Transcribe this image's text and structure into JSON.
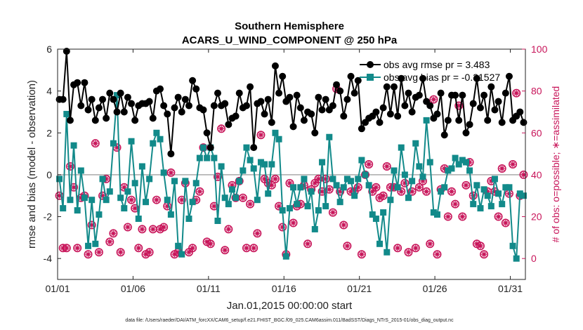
{
  "chart_data": {
    "type": "line",
    "title": "Southern Hemisphere",
    "subtitle": "ACARS_U_WIND_COMPONENT @ 250 hPa",
    "xlabel": "Jan.01,2015 00:00:00 start",
    "ylabel": "rmse and bias (model - observation)",
    "ylabel_right": "# of obs: o=possible; ∗=assimilated",
    "footnote": "data file: /Users/raeder/DAI/ATM_forcXX/CAM6_setup/f.e21.FHIST_BGC.f09_025.CAM6assim.011/BadSST/Diags_NTrS_2015-01/obs_diag_output.nc",
    "x_tick_labels": [
      "01/01",
      "01/06",
      "01/11",
      "01/16",
      "01/21",
      "01/26",
      "01/31"
    ],
    "x_tick_days": [
      1,
      6,
      11,
      16,
      21,
      26,
      31
    ],
    "xlim_days": [
      1,
      32
    ],
    "ylim": [
      -5,
      6
    ],
    "y_ticks": [
      -4,
      -2,
      0,
      2,
      4,
      6
    ],
    "ylim_right": [
      -10,
      100
    ],
    "y_ticks_right": [
      0,
      20,
      40,
      60,
      80,
      100
    ],
    "zero_line": 0,
    "legend_position": "top-right",
    "colors": {
      "rmse": "#000000",
      "bias": "#128a8a",
      "obs": "#c8155a",
      "zero": "#aaaaaa"
    },
    "series": [
      {
        "name": "obs avg rmse pr = 3.483",
        "marker": "circle",
        "y": [
          3.6,
          3.6,
          5.9,
          2.6,
          4.3,
          4.4,
          3.3,
          4.4,
          3.1,
          3.6,
          2.6,
          3.2,
          3.6,
          2.7,
          3.9,
          3.6,
          3.0,
          3.9,
          3.0,
          3.7,
          3.4,
          2.6,
          3.3,
          3.4,
          3.4,
          3.5,
          2.7,
          4.0,
          4.1,
          3.3,
          2.9,
          1.0,
          3.2,
          3.7,
          3.0,
          3.6,
          3.3,
          4.5,
          4.1,
          3.2,
          3.1,
          2.0,
          1.3,
          3.3,
          3.9,
          3.3,
          3.4,
          2.4,
          2.7,
          2.8,
          3.9,
          3.2,
          3.3,
          4.2,
          1.3,
          3.4,
          3.5,
          2.9,
          3.6,
          2.5,
          5.2,
          3.9,
          4.7,
          3.5,
          3.7,
          2.3,
          3.8,
          3.2,
          2.6,
          3.0,
          2.9,
          2.0,
          3.7,
          3.1,
          3.6,
          3.1,
          3.3,
          4.3,
          4.0,
          2.8,
          3.6,
          4.7,
          3.9,
          4.5,
          2.2,
          2.5,
          2.7,
          2.8,
          3.0,
          2.5,
          3.2,
          4.2,
          2.9,
          4.2,
          2.8,
          4.6,
          3.3,
          3.9,
          3.0,
          3.7,
          3.8,
          4.6,
          3.5,
          3.3,
          2.7,
          2.9,
          3.9,
          1.9,
          2.6,
          3.8,
          3.8,
          2.6,
          3.8,
          2.0,
          2.4,
          3.4,
          4.6,
          3.2,
          3.8,
          2.6,
          4.2,
          3.1,
          3.5,
          2.5,
          3.9,
          4.7,
          2.6,
          2.8,
          3.0,
          2.5
        ]
      },
      {
        "name": "obs avg bias pr = -0.31527",
        "marker": "square",
        "y": [
          -0.2,
          -1.6,
          2.9,
          -1.2,
          1.4,
          -1.7,
          0.2,
          -1.1,
          -3.4,
          -1.2,
          -3.3,
          -1.9,
          -0.2,
          -1.2,
          -0.8,
          1.5,
          3.8,
          -1.1,
          -1.6,
          -0.8,
          1.6,
          -0.4,
          -2.1,
          0.4,
          -1.3,
          -0.2,
          1.5,
          2.0,
          1.7,
          0.1,
          -1.2,
          -1.9,
          -0.3,
          -3.4,
          -3.8,
          -0.3,
          -2.1,
          -1.3,
          -0.4,
          0.8,
          1.3,
          0.8,
          1.3,
          0.8,
          -2.2,
          0.4,
          -1.1,
          -1.4,
          -0.7,
          -1.1,
          -0.3,
          0.2,
          1.3,
          0.7,
          0.3,
          -1.2,
          0.6,
          0.5,
          -0.9,
          0.5,
          2.0,
          1.7,
          -1.7,
          -3.9,
          -1.6,
          -0.6,
          -1.4,
          -0.6,
          -0.2,
          -1.5,
          -0.8,
          -2.6,
          -1.7,
          0.6,
          -1.5,
          1.8,
          -0.2,
          -0.5,
          -1.3,
          -0.6,
          -0.2,
          -0.3,
          -1.0,
          -0.2,
          0.7,
          0.0,
          -0.5,
          -1.9,
          -2.1,
          -3.3,
          -1.8,
          -3.7,
          -1.2,
          0.2,
          -0.6,
          1.3,
          0.0,
          -1.1,
          -0.3,
          1.5,
          0.4,
          -0.1,
          2.6,
          0.6,
          -1.8,
          -1.9,
          -0.8,
          -0.6,
          0.2,
          0.3,
          0.8,
          0.5,
          0.7,
          0.6,
          0.2,
          -1.4,
          -0.5,
          -1.6,
          -0.7,
          -1.0,
          -1.5,
          -0.2,
          -0.9,
          -1.4,
          -0.6,
          -0.6,
          -3.4,
          -4.0,
          -0.9,
          -1.0
        ]
      }
    ],
    "obs_counts": [
      30,
      5,
      5,
      44,
      34,
      5,
      29,
      30,
      2,
      16,
      55,
      3,
      30,
      38,
      8,
      12,
      53,
      3,
      34,
      15,
      28,
      24,
      5,
      14,
      2,
      3,
      14,
      28,
      14,
      15,
      25,
      41,
      2,
      3,
      28,
      36,
      3,
      5,
      28,
      32,
      53,
      8,
      7,
      25,
      39,
      62,
      4,
      14,
      35,
      29,
      37,
      29,
      5,
      26,
      5,
      12,
      59,
      38,
      36,
      35,
      38,
      25,
      15,
      2,
      36,
      17,
      25,
      26,
      35,
      7,
      33,
      36,
      38,
      32,
      38,
      33,
      22,
      81,
      32,
      16,
      6,
      32,
      32,
      34,
      2,
      40,
      45,
      32,
      34,
      29,
      30,
      44,
      34,
      34,
      5,
      32,
      36,
      3,
      32,
      5,
      34,
      37,
      32,
      7,
      76,
      2,
      33,
      43,
      20,
      32,
      26,
      73,
      20,
      35,
      46,
      30,
      7,
      6,
      2,
      32,
      37,
      32,
      20,
      43,
      17,
      31,
      45,
      79,
      30,
      40
    ]
  }
}
